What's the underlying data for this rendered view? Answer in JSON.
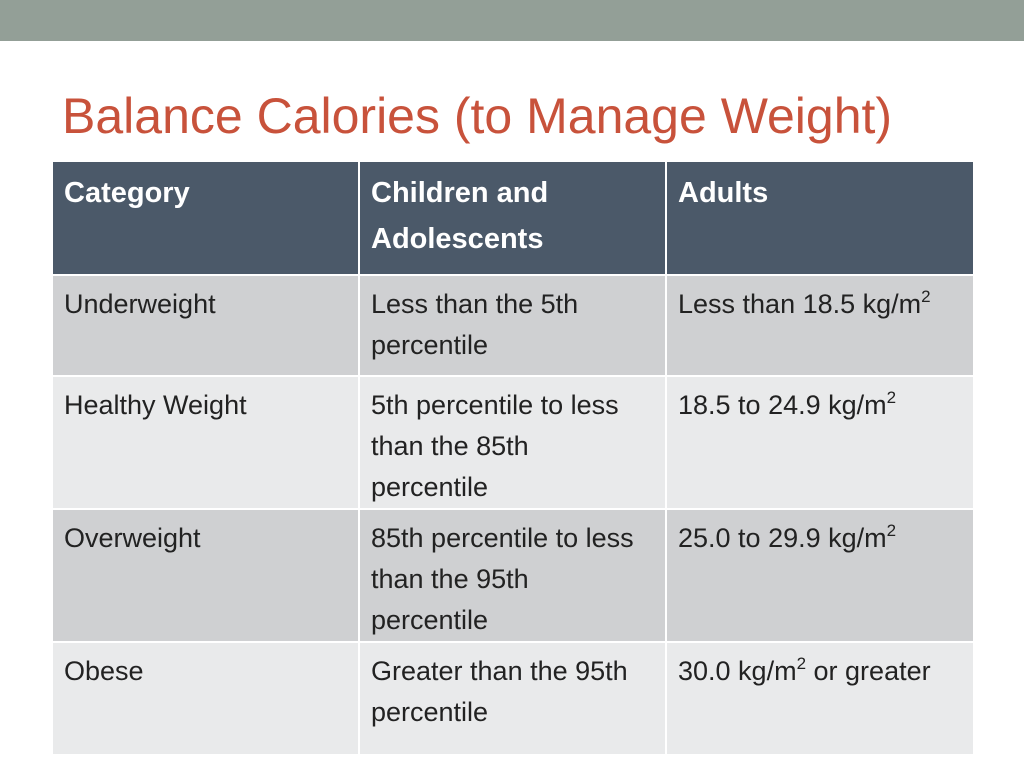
{
  "slide": {
    "title": "Balance Calories (to Manage Weight)"
  },
  "table": {
    "headers": [
      "Category",
      "Children and Adolescents",
      "Adults"
    ],
    "rows": [
      {
        "category": "Underweight",
        "children": "Less than the 5th percentile",
        "adults_prefix": "Less than 18.5 kg/m",
        "adults_sup": "2",
        "adults_suffix": ""
      },
      {
        "category": "Healthy Weight",
        "children": "5th percentile to less than the 85th percentile",
        "adults_prefix": "18.5 to 24.9 kg/m",
        "adults_sup": "2",
        "adults_suffix": ""
      },
      {
        "category": "Overweight",
        "children": "85th percentile to less than the 95th percentile",
        "adults_prefix": "25.0 to 29.9 kg/m",
        "adults_sup": "2",
        "adults_suffix": ""
      },
      {
        "category": "Obese",
        "children": "Greater than the 95th percentile",
        "adults_prefix": "30.0 kg/m",
        "adults_sup": "2",
        "adults_suffix": " or greater"
      }
    ]
  },
  "colors": {
    "top_bar": "#939f97",
    "title": "#c8523b",
    "header_bg": "#4b5969",
    "row_dark": "#cfd0d2",
    "row_light": "#e9eaeb"
  }
}
